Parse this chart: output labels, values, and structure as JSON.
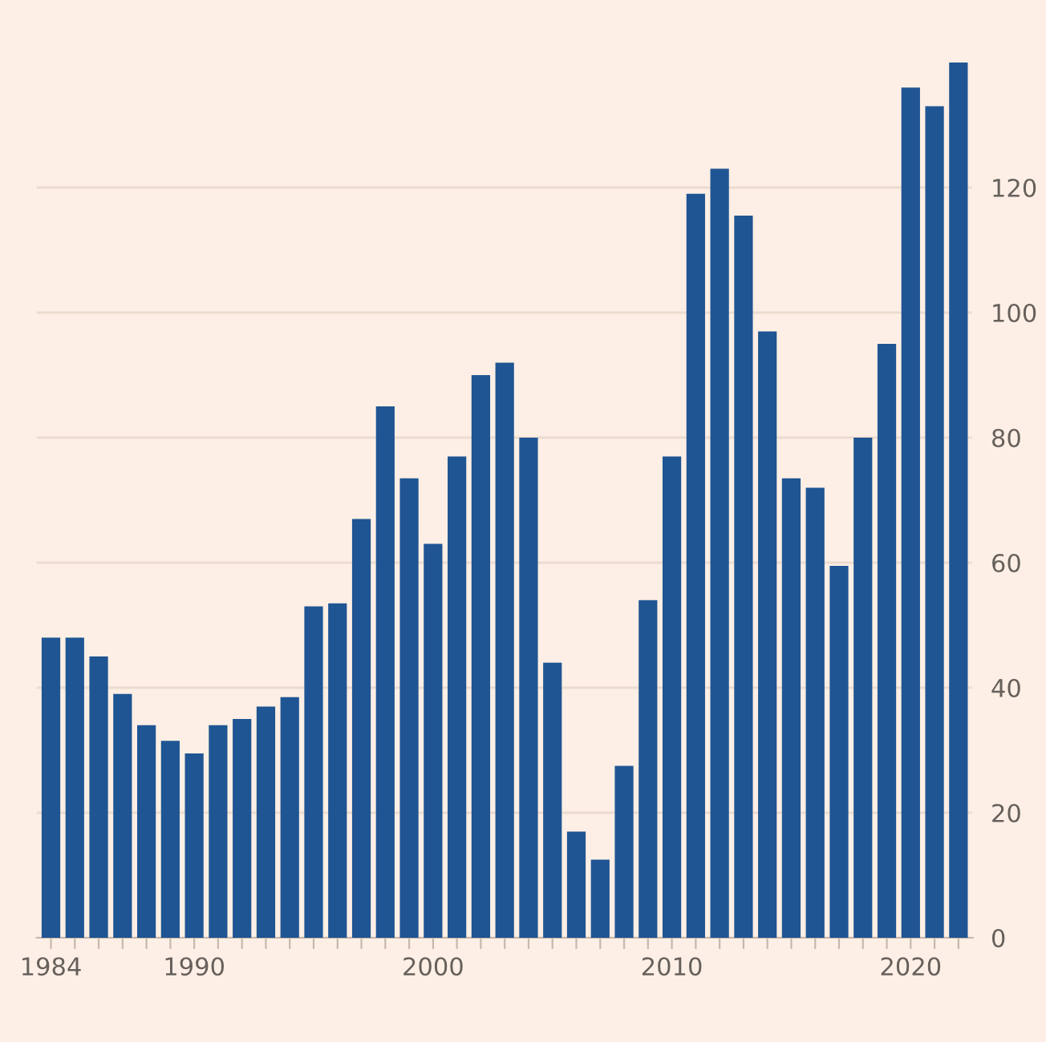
{
  "chart_data": {
    "type": "bar",
    "x": [
      1984,
      1985,
      1986,
      1987,
      1988,
      1989,
      1990,
      1991,
      1992,
      1993,
      1994,
      1995,
      1996,
      1997,
      1998,
      1999,
      2000,
      2001,
      2002,
      2003,
      2004,
      2005,
      2006,
      2007,
      2008,
      2009,
      2010,
      2011,
      2012,
      2013,
      2014,
      2015,
      2016,
      2017,
      2018,
      2019,
      2020,
      2021,
      2022
    ],
    "values": [
      48,
      48,
      45,
      39,
      34,
      31.5,
      29.5,
      34,
      35,
      37,
      38.5,
      53,
      53.5,
      67,
      85,
      73.5,
      63,
      77,
      90,
      92,
      80,
      44,
      17,
      12.5,
      27.5,
      54,
      77,
      119,
      123,
      115.5,
      97,
      73.5,
      72,
      59.5,
      80,
      95,
      136,
      133,
      140
    ],
    "color": "#1f5593",
    "xlim": [
      1983.4,
      2022.6
    ],
    "xticks": [
      1984,
      {
        "value": 1985,
        "label": null
      },
      {
        "value": 1986,
        "label": null
      },
      {
        "value": 1987,
        "label": null
      },
      {
        "value": 1988,
        "label": null
      },
      {
        "value": 1989,
        "label": null
      },
      1990,
      {
        "value": 1991,
        "label": null
      },
      {
        "value": 1992,
        "label": null
      },
      {
        "value": 1993,
        "label": null
      },
      {
        "value": 1994,
        "label": null
      },
      {
        "value": 1995,
        "label": null
      },
      {
        "value": 1996,
        "label": null
      },
      {
        "value": 1997,
        "label": null
      },
      {
        "value": 1998,
        "label": null
      },
      {
        "value": 1999,
        "label": null
      },
      2000,
      {
        "value": 2001,
        "label": null
      },
      {
        "value": 2002,
        "label": null
      },
      {
        "value": 2003,
        "label": null
      },
      {
        "value": 2004,
        "label": null
      },
      {
        "value": 2005,
        "label": null
      },
      {
        "value": 2006,
        "label": null
      },
      {
        "value": 2007,
        "label": null
      },
      {
        "value": 2008,
        "label": null
      },
      {
        "value": 2009,
        "label": null
      },
      2010,
      {
        "value": 2011,
        "label": null
      },
      {
        "value": 2012,
        "label": null
      },
      {
        "value": 2013,
        "label": null
      },
      {
        "value": 2014,
        "label": null
      },
      {
        "value": 2015,
        "label": null
      },
      {
        "value": 2016,
        "label": null
      },
      {
        "value": 2017,
        "label": null
      },
      {
        "value": 2018,
        "label": null
      },
      {
        "value": 2019,
        "label": null
      },
      2020,
      {
        "value": 2021,
        "label": null
      },
      {
        "value": 2022,
        "label": null
      }
    ],
    "ylim": [
      0,
      145
    ],
    "yticks": [
      0,
      20,
      40,
      60,
      80,
      100,
      120
    ],
    "grid": "y"
  }
}
